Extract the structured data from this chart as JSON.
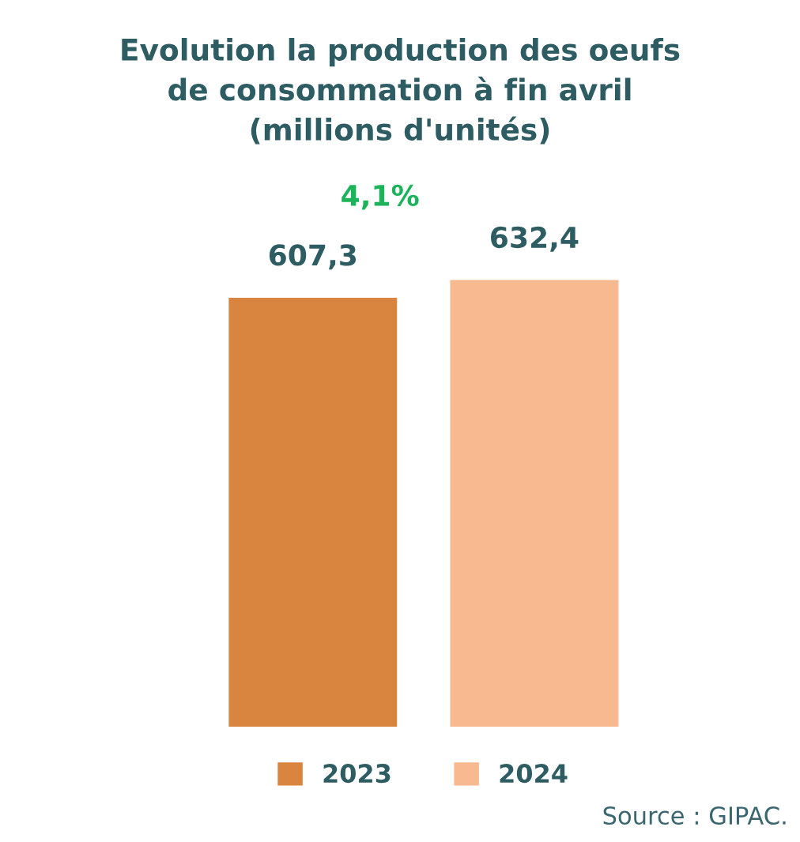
{
  "chart_data": {
    "type": "bar",
    "title": "Evolution la production des oeufs\nde consommation à fin avril\n(millions d'unités)",
    "categories": [
      null
    ],
    "series": [
      {
        "name": "2023",
        "color": "#d9843f",
        "values": [
          607.3
        ],
        "value_labels": [
          "607,3"
        ]
      },
      {
        "name": "2024",
        "color": "#f8b890",
        "values": [
          632.4
        ],
        "value_labels": [
          "632,4"
        ]
      }
    ],
    "tick_labels": false,
    "legend": "bottom",
    "annotations": [
      "4,1%",
      "Source : GIPAC."
    ]
  }
}
